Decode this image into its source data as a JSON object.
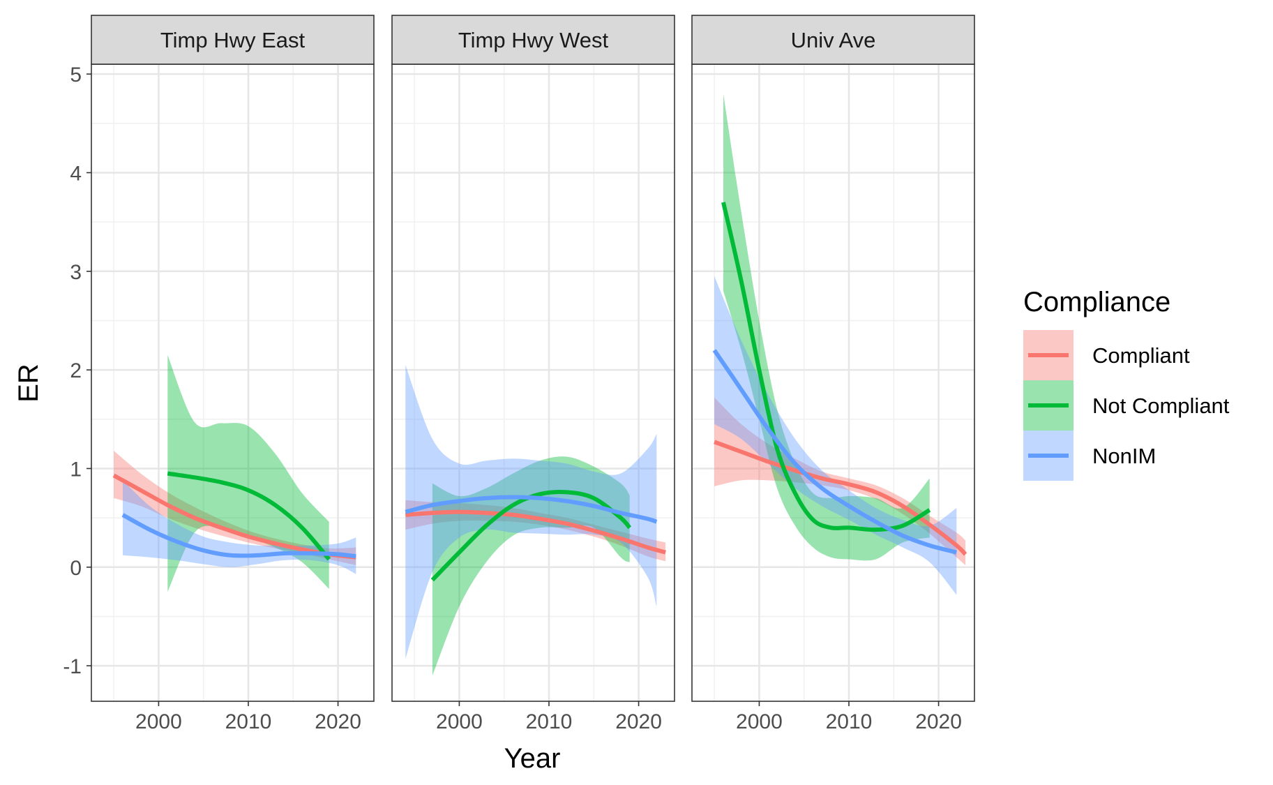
{
  "chart_data": {
    "type": "line",
    "ylabel": "ER",
    "xlabel": "Year",
    "xlim": [
      1992.5,
      2024
    ],
    "ylim": [
      -1.36,
      5.1
    ],
    "x_ticks": [
      2000,
      2010,
      2020
    ],
    "y_ticks": [
      -1,
      0,
      1,
      2,
      3,
      4,
      5
    ],
    "grid": true,
    "legend": {
      "title": "Compliance",
      "placement": "right",
      "entries": [
        "Compliant",
        "Not Compliant",
        "NonIM"
      ]
    },
    "colors": {
      "Compliant": "#F8766D",
      "Not Compliant": "#00BA38",
      "NonIM": "#619CFF"
    },
    "panels": [
      {
        "title": "Timp Hwy East",
        "series": [
          {
            "name": "Compliant",
            "x": [
              1995,
              1998,
              2001,
              2004,
              2007,
              2010,
              2013,
              2016,
              2019,
              2022
            ],
            "y": [
              0.93,
              0.78,
              0.63,
              0.5,
              0.4,
              0.31,
              0.24,
              0.18,
              0.13,
              0.1
            ],
            "lower": [
              0.7,
              0.62,
              0.5,
              0.4,
              0.32,
              0.25,
              0.19,
              0.14,
              0.08,
              0.02
            ],
            "upper": [
              1.18,
              0.95,
              0.76,
              0.61,
              0.48,
              0.37,
              0.29,
              0.23,
              0.19,
              0.2
            ]
          },
          {
            "name": "Not Compliant",
            "x": [
              2001,
              2004,
              2007,
              2010,
              2013,
              2016,
              2019
            ],
            "y": [
              0.95,
              0.91,
              0.86,
              0.78,
              0.63,
              0.4,
              0.08
            ],
            "lower": [
              -0.25,
              0.35,
              0.4,
              0.3,
              0.2,
              0.05,
              -0.22
            ],
            "upper": [
              2.15,
              1.47,
              1.46,
              1.43,
              1.15,
              0.75,
              0.46
            ]
          },
          {
            "name": "NonIM",
            "x": [
              1996,
              1999,
              2002,
              2005,
              2008,
              2011,
              2014,
              2017,
              2020,
              2022
            ],
            "y": [
              0.53,
              0.38,
              0.26,
              0.17,
              0.12,
              0.12,
              0.14,
              0.14,
              0.13,
              0.11
            ],
            "lower": [
              0.12,
              0.1,
              0.07,
              0.03,
              0.0,
              0.03,
              0.07,
              0.07,
              0.02,
              -0.07
            ],
            "upper": [
              0.88,
              0.62,
              0.44,
              0.31,
              0.25,
              0.22,
              0.22,
              0.22,
              0.24,
              0.3
            ]
          }
        ]
      },
      {
        "title": "Timp Hwy West",
        "series": [
          {
            "name": "Compliant",
            "x": [
              1994,
              1997,
              2000,
              2003,
              2006,
              2009,
              2012,
              2015,
              2018,
              2021,
              2023
            ],
            "y": [
              0.53,
              0.55,
              0.56,
              0.55,
              0.53,
              0.49,
              0.44,
              0.37,
              0.29,
              0.2,
              0.15
            ],
            "lower": [
              0.38,
              0.44,
              0.47,
              0.47,
              0.46,
              0.43,
              0.38,
              0.31,
              0.22,
              0.11,
              0.06
            ],
            "upper": [
              0.68,
              0.66,
              0.65,
              0.63,
              0.6,
              0.55,
              0.5,
              0.43,
              0.36,
              0.29,
              0.25
            ]
          },
          {
            "name": "Not Compliant",
            "x": [
              1997,
              2000,
              2003,
              2006,
              2009,
              2012,
              2015,
              2018,
              2019
            ],
            "y": [
              -0.13,
              0.15,
              0.42,
              0.63,
              0.74,
              0.76,
              0.7,
              0.5,
              0.4
            ],
            "lower": [
              -1.1,
              -0.4,
              0.05,
              0.32,
              0.4,
              0.4,
              0.4,
              0.1,
              0.05
            ],
            "upper": [
              0.85,
              0.72,
              0.8,
              0.95,
              1.08,
              1.12,
              1.02,
              0.85,
              0.73
            ]
          },
          {
            "name": "NonIM",
            "x": [
              1994,
              1997,
              2000,
              2003,
              2006,
              2009,
              2012,
              2015,
              2018,
              2021,
              2022
            ],
            "y": [
              0.56,
              0.63,
              0.67,
              0.7,
              0.71,
              0.7,
              0.67,
              0.62,
              0.55,
              0.49,
              0.46
            ],
            "lower": [
              -0.93,
              -0.05,
              0.3,
              0.38,
              0.35,
              0.34,
              0.33,
              0.33,
              0.25,
              -0.1,
              -0.4
            ],
            "upper": [
              2.05,
              1.3,
              1.05,
              1.08,
              1.1,
              1.08,
              1.05,
              0.97,
              0.95,
              1.2,
              1.35
            ]
          }
        ]
      },
      {
        "title": "Univ Ave",
        "series": [
          {
            "name": "Compliant",
            "x": [
              1995,
              1998,
              2001,
              2004,
              2007,
              2010,
              2013,
              2016,
              2019,
              2022,
              2023
            ],
            "y": [
              1.27,
              1.17,
              1.07,
              0.98,
              0.9,
              0.84,
              0.76,
              0.62,
              0.43,
              0.22,
              0.13
            ],
            "lower": [
              0.82,
              0.88,
              0.88,
              0.86,
              0.83,
              0.78,
              0.69,
              0.54,
              0.34,
              0.1,
              0.02
            ],
            "upper": [
              1.72,
              1.45,
              1.25,
              1.1,
              0.97,
              0.9,
              0.83,
              0.7,
              0.52,
              0.35,
              0.27
            ]
          },
          {
            "name": "Not Compliant",
            "x": [
              1996,
              1998,
              2000,
              2002,
              2004,
              2006,
              2008,
              2010,
              2013,
              2016,
              2019
            ],
            "y": [
              3.7,
              2.9,
              2.0,
              1.2,
              0.75,
              0.48,
              0.4,
              0.4,
              0.38,
              0.42,
              0.58
            ],
            "lower": [
              2.8,
              2.2,
              1.5,
              0.8,
              0.42,
              0.2,
              0.1,
              0.08,
              0.08,
              0.25,
              0.3
            ],
            "upper": [
              4.8,
              3.6,
              2.5,
              1.6,
              1.05,
              0.75,
              0.7,
              0.72,
              0.7,
              0.6,
              0.9
            ]
          },
          {
            "name": "NonIM",
            "x": [
              1995,
              1998,
              2001,
              2004,
              2007,
              2010,
              2013,
              2016,
              2019,
              2022
            ],
            "y": [
              2.2,
              1.8,
              1.4,
              1.05,
              0.8,
              0.62,
              0.46,
              0.32,
              0.22,
              0.15
            ],
            "lower": [
              1.45,
              1.3,
              1.05,
              0.8,
              0.62,
              0.48,
              0.33,
              0.2,
              0.05,
              -0.28
            ],
            "upper": [
              2.95,
              2.3,
              1.75,
              1.3,
              0.98,
              0.78,
              0.6,
              0.48,
              0.42,
              0.6
            ]
          }
        ]
      }
    ]
  }
}
